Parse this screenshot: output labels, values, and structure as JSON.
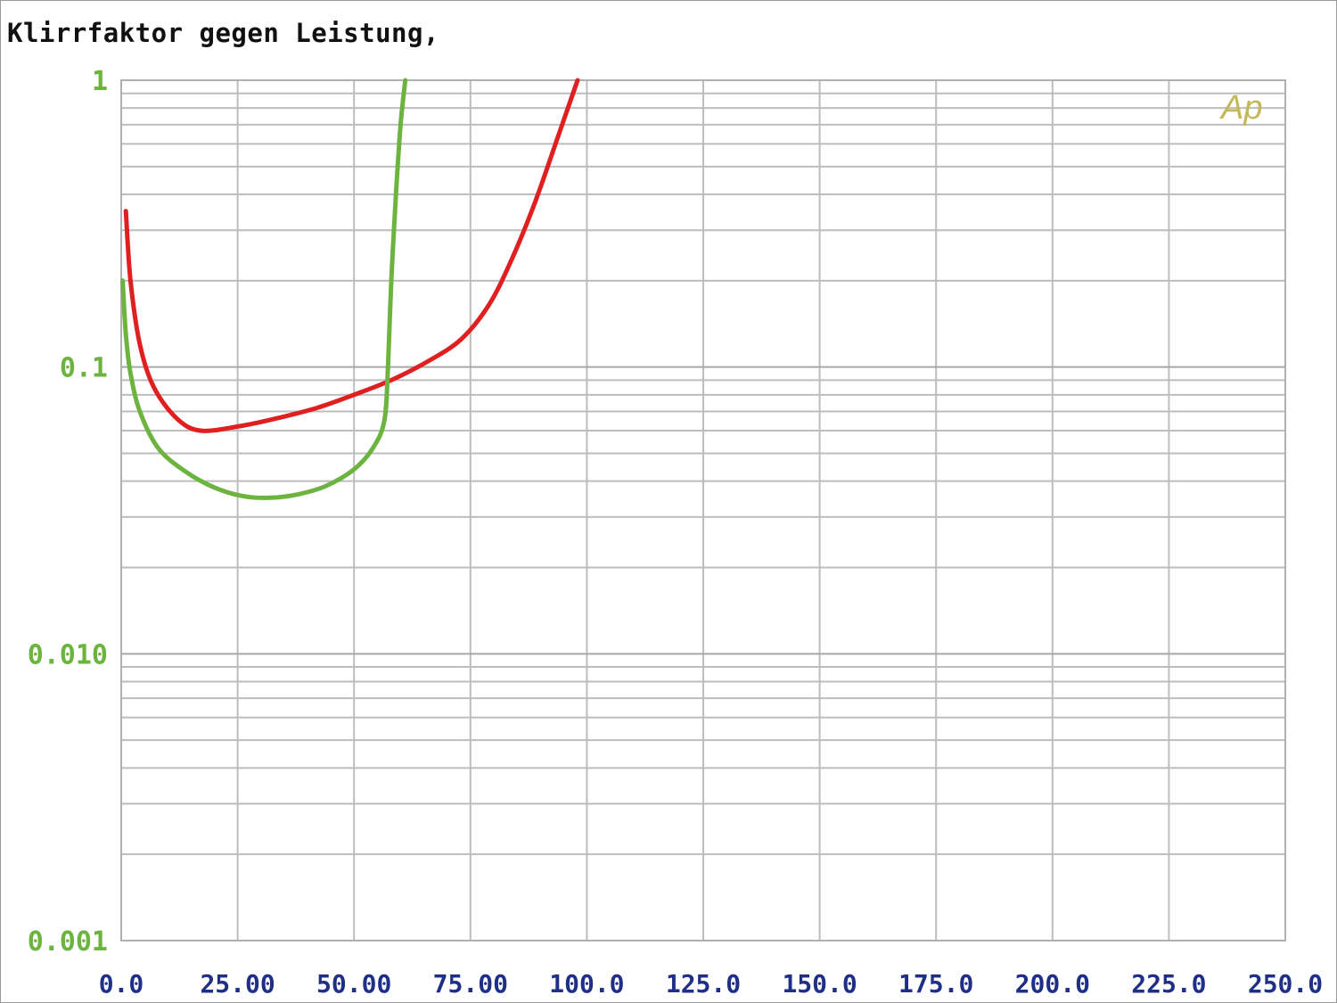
{
  "chart_data": {
    "type": "line",
    "title": "Klirrfaktor gegen Leistung,",
    "brand_mark": "Ap",
    "xlim": [
      0,
      250
    ],
    "ylim": [
      0.001,
      1
    ],
    "y_scale": "log",
    "grid": true,
    "x_ticks": [
      "0.0",
      "25.00",
      "50.00",
      "75.00",
      "100.0",
      "125.0",
      "150.0",
      "175.0",
      "200.0",
      "225.0",
      "250.0"
    ],
    "y_ticks": [
      {
        "value": 1,
        "label": "1"
      },
      {
        "value": 0.1,
        "label": "0.1"
      },
      {
        "value": 0.01,
        "label": "0.010"
      },
      {
        "value": 0.001,
        "label": "0.001"
      }
    ],
    "series": [
      {
        "color": "#e02020",
        "x": [
          1,
          2,
          4,
          7,
          12,
          17,
          25,
          33,
          42,
          50,
          58,
          66,
          73,
          79,
          84,
          89,
          94,
          98
        ],
        "y": [
          0.35,
          0.2,
          0.12,
          0.085,
          0.066,
          0.06,
          0.062,
          0.066,
          0.072,
          0.08,
          0.09,
          0.105,
          0.125,
          0.165,
          0.24,
          0.38,
          0.65,
          1.0
        ]
      },
      {
        "color": "#6db33f",
        "x": [
          0.3,
          1,
          2,
          4,
          8,
          14,
          20,
          26,
          32,
          38,
          44,
          50,
          54,
          56.5,
          57.3,
          58,
          59,
          60,
          61
        ],
        "y": [
          0.2,
          0.13,
          0.095,
          0.07,
          0.052,
          0.043,
          0.038,
          0.0355,
          0.035,
          0.036,
          0.0385,
          0.044,
          0.052,
          0.065,
          0.1,
          0.2,
          0.4,
          0.7,
          1.0
        ]
      }
    ]
  }
}
